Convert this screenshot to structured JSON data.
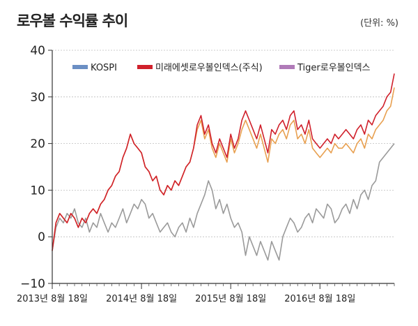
{
  "title": "로우볼 수익률 추이",
  "unit": "(단위: %)",
  "chart_data": {
    "type": "line",
    "title": "로우볼 수익률 추이",
    "ylabel": "%",
    "xlabel": "",
    "ylim": [
      -10,
      40
    ],
    "yticks": [
      -10,
      0,
      10,
      20,
      30,
      40
    ],
    "x_range": [
      0,
      46
    ],
    "x_ticks": [
      {
        "x": 0,
        "label": "2013년 8월 18일"
      },
      {
        "x": 12,
        "label": "2014년 8월 18일"
      },
      {
        "x": 24,
        "label": "2015년 8월 18일"
      },
      {
        "x": 36,
        "label": "2016년 8월 18일"
      }
    ],
    "legend_position": "top",
    "series": [
      {
        "name": "KOSPI",
        "color": "#6b8fc4",
        "plot_color": "#9a9a9a",
        "x": [
          0,
          0.5,
          1,
          1.5,
          2,
          2.5,
          3,
          3.5,
          4,
          4.5,
          5,
          5.5,
          6,
          6.5,
          7,
          7.5,
          8,
          8.5,
          9,
          9.5,
          10,
          10.5,
          11,
          11.5,
          12,
          12.5,
          13,
          13.5,
          14,
          14.5,
          15,
          15.5,
          16,
          16.5,
          17,
          17.5,
          18,
          18.5,
          19,
          19.5,
          20,
          20.5,
          21,
          21.5,
          22,
          22.5,
          23,
          23.5,
          24,
          24.5,
          25,
          25.5,
          26,
          26.5,
          27,
          27.5,
          28,
          28.5,
          29,
          29.5,
          30,
          30.5,
          31,
          31.5,
          32,
          32.5,
          33,
          33.5,
          34,
          34.5,
          35,
          35.5,
          36,
          36.5,
          37,
          37.5,
          38,
          38.5,
          39,
          39.5,
          40,
          40.5,
          41,
          41.5,
          42,
          42.5,
          43,
          43.5,
          44,
          44.5,
          45,
          45.5,
          46
        ],
        "values": [
          -3,
          2,
          4,
          3,
          5,
          4,
          6,
          3,
          2,
          4,
          1,
          3,
          2,
          5,
          3,
          1,
          3,
          2,
          4,
          6,
          3,
          5,
          7,
          6,
          8,
          7,
          4,
          5,
          3,
          1,
          2,
          3,
          1,
          0,
          2,
          3,
          1,
          4,
          2,
          5,
          7,
          9,
          12,
          10,
          6,
          8,
          5,
          7,
          4,
          2,
          3,
          1,
          -4,
          0,
          -2,
          -4,
          -1,
          -3,
          -5,
          -1,
          -3,
          -5,
          0,
          2,
          4,
          3,
          1,
          2,
          4,
          5,
          3,
          6,
          5,
          4,
          7,
          6,
          3,
          4,
          6,
          7,
          5,
          8,
          6,
          9,
          10,
          8,
          11,
          12,
          16,
          17,
          18,
          19,
          20
        ]
      },
      {
        "name": "미래에셋로우볼인덱스(주식)",
        "color": "#d0202b",
        "x": [
          0,
          0.5,
          1,
          1.5,
          2,
          2.5,
          3,
          3.5,
          4,
          4.5,
          5,
          5.5,
          6,
          6.5,
          7,
          7.5,
          8,
          8.5,
          9,
          9.5,
          10,
          10.5,
          11,
          11.5,
          12,
          12.5,
          13,
          13.5,
          14,
          14.5,
          15,
          15.5,
          16,
          16.5,
          17,
          17.5,
          18,
          18.5,
          19,
          19.5,
          20,
          20.5,
          21,
          21.5,
          22,
          22.5,
          23,
          23.5,
          24,
          24.5,
          25,
          25.5,
          26,
          26.5,
          27,
          27.5,
          28,
          28.5,
          29,
          29.5,
          30,
          30.5,
          31,
          31.5,
          32,
          32.5,
          33,
          33.5,
          34,
          34.5,
          35,
          35.5,
          36,
          36.5,
          37,
          37.5,
          38,
          38.5,
          39,
          39.5,
          40,
          40.5,
          41,
          41.5,
          42,
          42.5,
          43,
          43.5,
          44,
          44.5,
          45,
          45.5,
          46
        ],
        "values": [
          -3,
          3,
          5,
          4,
          3,
          5,
          4,
          2,
          4,
          3,
          5,
          6,
          5,
          7,
          8,
          10,
          11,
          13,
          14,
          17,
          19,
          22,
          20,
          19,
          18,
          15,
          14,
          12,
          13,
          10,
          9,
          11,
          10,
          12,
          11,
          13,
          15,
          16,
          19,
          24,
          26,
          22,
          24,
          20,
          18,
          21,
          19,
          17,
          22,
          19,
          21,
          25,
          27,
          25,
          23,
          21,
          24,
          21,
          18,
          23,
          22,
          24,
          25,
          23,
          26,
          27,
          23,
          24,
          22,
          25,
          21,
          20,
          19,
          20,
          21,
          20,
          22,
          21,
          22,
          23,
          22,
          21,
          23,
          24,
          22,
          25,
          24,
          26,
          27,
          28,
          30,
          31,
          35
        ]
      },
      {
        "name": "Tiger로우볼인덱스",
        "color": "#b07ab8",
        "plot_color": "#e8a050",
        "x": [
          0,
          0.5,
          1,
          1.5,
          2,
          2.5,
          3,
          3.5,
          4,
          4.5,
          5,
          5.5,
          6,
          6.5,
          7,
          7.5,
          8,
          8.5,
          9,
          9.5,
          10,
          10.5,
          11,
          11.5,
          12,
          12.5,
          13,
          13.5,
          14,
          14.5,
          15,
          15.5,
          16,
          16.5,
          17,
          17.5,
          18,
          18.5,
          19,
          19.5,
          20,
          20.5,
          21,
          21.5,
          22,
          22.5,
          23,
          23.5,
          24,
          24.5,
          25,
          25.5,
          26,
          26.5,
          27,
          27.5,
          28,
          28.5,
          29,
          29.5,
          30,
          30.5,
          31,
          31.5,
          32,
          32.5,
          33,
          33.5,
          34,
          34.5,
          35,
          35.5,
          36,
          36.5,
          37,
          37.5,
          38,
          38.5,
          39,
          39.5,
          40,
          40.5,
          41,
          41.5,
          42,
          42.5,
          43,
          43.5,
          44,
          44.5,
          45,
          45.5,
          46
        ],
        "values": [
          -3,
          3,
          5,
          4,
          3,
          5,
          4,
          2,
          4,
          3,
          5,
          6,
          5,
          7,
          8,
          10,
          11,
          13,
          14,
          17,
          19,
          22,
          20,
          19,
          18,
          15,
          14,
          12,
          13,
          10,
          9,
          11,
          10,
          12,
          11,
          13,
          15,
          16,
          19,
          23,
          25,
          21,
          23,
          19,
          17,
          20,
          18,
          16,
          21,
          18,
          20,
          23,
          25,
          23,
          21,
          19,
          22,
          19,
          16,
          21,
          20,
          22,
          23,
          21,
          24,
          25,
          21,
          22,
          20,
          23,
          19,
          18,
          17,
          18,
          19,
          18,
          20,
          19,
          19,
          20,
          19,
          18,
          20,
          21,
          19,
          22,
          21,
          23,
          24,
          25,
          27,
          28,
          32
        ]
      }
    ]
  }
}
